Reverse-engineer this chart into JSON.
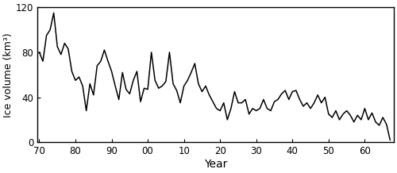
{
  "years": [
    1970,
    1971,
    1972,
    1973,
    1974,
    1975,
    1976,
    1977,
    1978,
    1979,
    1980,
    1981,
    1982,
    1983,
    1984,
    1985,
    1986,
    1987,
    1988,
    1989,
    1990,
    1991,
    1992,
    1993,
    1994,
    1995,
    1996,
    1997,
    1998,
    1999,
    2000,
    2001,
    2002,
    2003,
    2004,
    2005,
    2006,
    2007,
    2008,
    2009,
    2010,
    2011,
    2012,
    2013,
    2014,
    2015,
    2016,
    2017,
    2018,
    2019,
    2020,
    2021,
    2022,
    2023,
    2024,
    2025,
    2026,
    2027,
    2028,
    2029,
    2030,
    2031,
    2032,
    2033,
    2034,
    2035,
    2036,
    2037,
    2038,
    2039,
    2040,
    2041,
    2042,
    2043,
    2044,
    2045,
    2046,
    2047,
    2048,
    2049,
    2050,
    2051,
    2052,
    2053,
    2054,
    2055,
    2056,
    2057,
    2058,
    2059,
    2060,
    2061,
    2062,
    2063,
    2064,
    2065,
    2066,
    2067
  ],
  "values": [
    80,
    72,
    95,
    100,
    115,
    85,
    78,
    88,
    83,
    63,
    55,
    58,
    50,
    28,
    52,
    42,
    68,
    72,
    82,
    72,
    63,
    50,
    38,
    62,
    47,
    43,
    55,
    63,
    36,
    48,
    47,
    80,
    55,
    48,
    50,
    54,
    80,
    52,
    46,
    35,
    50,
    55,
    62,
    70,
    52,
    45,
    50,
    42,
    36,
    30,
    28,
    35,
    20,
    30,
    45,
    35,
    35,
    38,
    25,
    30,
    28,
    30,
    38,
    30,
    28,
    36,
    38,
    43,
    46,
    38,
    45,
    46,
    38,
    32,
    35,
    30,
    35,
    42,
    35,
    40,
    25,
    22,
    28,
    20,
    25,
    28,
    24,
    18,
    24,
    20,
    30,
    20,
    26,
    18,
    15,
    22,
    16,
    2
  ],
  "xlabel": "Year",
  "ylabel": "Ice volume (km³)",
  "xtick_labels": [
    "70",
    "80",
    "90",
    "00",
    "10",
    "20",
    "30",
    "40",
    "50",
    "60"
  ],
  "xtick_positions": [
    1970,
    1980,
    1990,
    2000,
    2010,
    2020,
    2030,
    2040,
    2050,
    2060
  ],
  "ytick_labels": [
    "0",
    "40",
    "80",
    "120"
  ],
  "ytick_positions": [
    0,
    40,
    80,
    120
  ],
  "ylim": [
    0,
    120
  ],
  "xlim": [
    1969.5,
    2068
  ],
  "line_color": "#000000",
  "line_width": 1.1,
  "background_color": "#ffffff",
  "tick_fontsize": 8.5,
  "label_fontsize": 9,
  "xlabel_fontsize": 10
}
